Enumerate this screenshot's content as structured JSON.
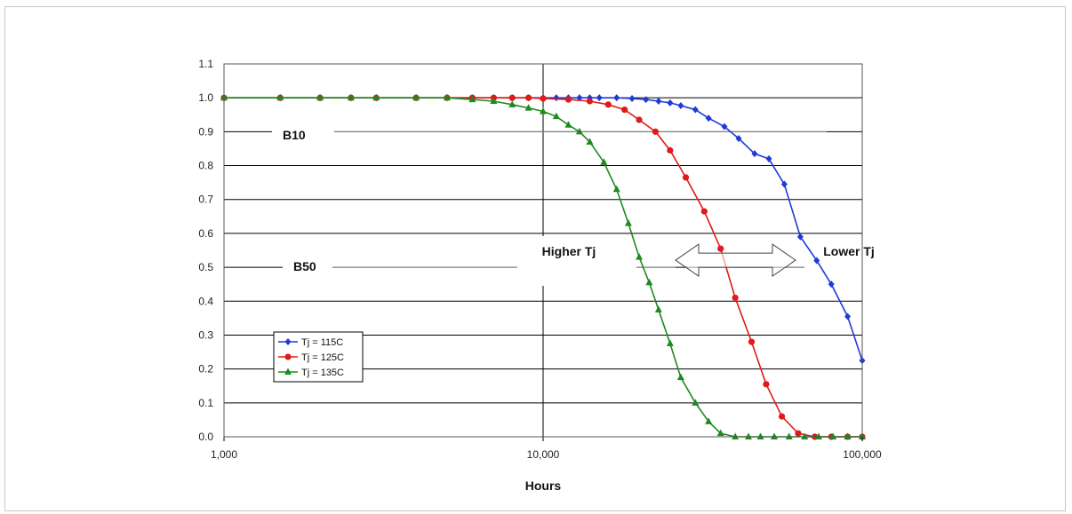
{
  "chart_data": {
    "type": "line",
    "title": "",
    "xlabel": "Hours",
    "ylabel": "",
    "xscale": "log",
    "xlim": [
      1000,
      100000
    ],
    "ylim": [
      0.0,
      1.1
    ],
    "x_ticks": [
      {
        "value": 1000,
        "label": "1,000"
      },
      {
        "value": 10000,
        "label": "10,000"
      },
      {
        "value": 100000,
        "label": "100,000"
      }
    ],
    "y_ticks": [
      {
        "value": 0.0,
        "label": "0.0"
      },
      {
        "value": 0.1,
        "label": "0.1"
      },
      {
        "value": 0.2,
        "label": "0.2"
      },
      {
        "value": 0.3,
        "label": "0.3"
      },
      {
        "value": 0.4,
        "label": "0.4"
      },
      {
        "value": 0.5,
        "label": "0.5"
      },
      {
        "value": 0.6,
        "label": "0.6"
      },
      {
        "value": 0.7,
        "label": "0.7"
      },
      {
        "value": 0.8,
        "label": "0.8"
      },
      {
        "value": 0.9,
        "label": "0.9"
      },
      {
        "value": 1.0,
        "label": "1.0"
      },
      {
        "value": 1.1,
        "label": "1.1"
      }
    ],
    "grid": "horizontal lines at each y tick; vertical lines at each x decade",
    "legend_position": "lower-left",
    "series": [
      {
        "name": "Tj = 115C",
        "color": "#1f3ad6",
        "marker": "diamond",
        "x": [
          1000,
          1500,
          2000,
          2500,
          3000,
          4000,
          5000,
          6000,
          7000,
          8000,
          9000,
          10000,
          11000,
          12000,
          13000,
          14000,
          15000,
          17000,
          19000,
          21000,
          23000,
          25000,
          27000,
          30000,
          33000,
          37000,
          41000,
          46000,
          51000,
          57000,
          64000,
          72000,
          80000,
          90000,
          100000
        ],
        "values": [
          1.0,
          1.0,
          1.0,
          1.0,
          1.0,
          1.0,
          1.0,
          1.0,
          1.0,
          1.0,
          1.0,
          1.0,
          1.0,
          1.0,
          1.0,
          1.0,
          1.0,
          1.0,
          0.998,
          0.995,
          0.99,
          0.985,
          0.977,
          0.965,
          0.94,
          0.915,
          0.88,
          0.835,
          0.82,
          0.745,
          0.59,
          0.52,
          0.45,
          0.355,
          0.225
        ]
      },
      {
        "name": "Tj = 125C",
        "color": "#e01919",
        "marker": "circle",
        "x": [
          1000,
          1500,
          2000,
          2500,
          3000,
          4000,
          5000,
          6000,
          7000,
          8000,
          9000,
          10000,
          12000,
          14000,
          16000,
          18000,
          20000,
          22500,
          25000,
          28000,
          32000,
          36000,
          40000,
          45000,
          50000,
          56000,
          63000,
          71000,
          80000,
          90000,
          100000
        ],
        "values": [
          1.0,
          1.0,
          1.0,
          1.0,
          1.0,
          1.0,
          1.0,
          1.0,
          1.0,
          1.0,
          1.0,
          0.998,
          0.995,
          0.99,
          0.98,
          0.965,
          0.935,
          0.9,
          0.845,
          0.765,
          0.665,
          0.555,
          0.41,
          0.28,
          0.155,
          0.06,
          0.01,
          0.0,
          0.0,
          0.0,
          0.0
        ]
      },
      {
        "name": "Tj = 135C",
        "color": "#1e8a1e",
        "marker": "triangle",
        "x": [
          1000,
          1500,
          2000,
          2500,
          3000,
          4000,
          5000,
          6000,
          7000,
          8000,
          9000,
          10000,
          11000,
          12000,
          13000,
          14000,
          15500,
          17000,
          18500,
          20000,
          21500,
          23000,
          25000,
          27000,
          30000,
          33000,
          36000,
          40000,
          44000,
          48000,
          53000,
          59000,
          66000,
          73000,
          81000,
          90000,
          100000
        ],
        "values": [
          1.0,
          1.0,
          1.0,
          1.0,
          1.0,
          1.0,
          1.0,
          0.995,
          0.99,
          0.98,
          0.97,
          0.96,
          0.945,
          0.92,
          0.9,
          0.87,
          0.81,
          0.73,
          0.63,
          0.53,
          0.455,
          0.375,
          0.275,
          0.175,
          0.1,
          0.045,
          0.01,
          0.0,
          0.0,
          0.0,
          0.0,
          0.0,
          0.0,
          0.0,
          0.0,
          0.0,
          0.0
        ]
      }
    ],
    "annotations": [
      {
        "text": "B10",
        "x": 1250,
        "y": 0.9
      },
      {
        "text": "B50",
        "x": 1500,
        "y": 0.5
      },
      {
        "text": "Higher Tj",
        "x": 12500,
        "y": 0.56
      },
      {
        "text": "Lower Tj",
        "x": 85000,
        "y": 0.56
      }
    ]
  }
}
